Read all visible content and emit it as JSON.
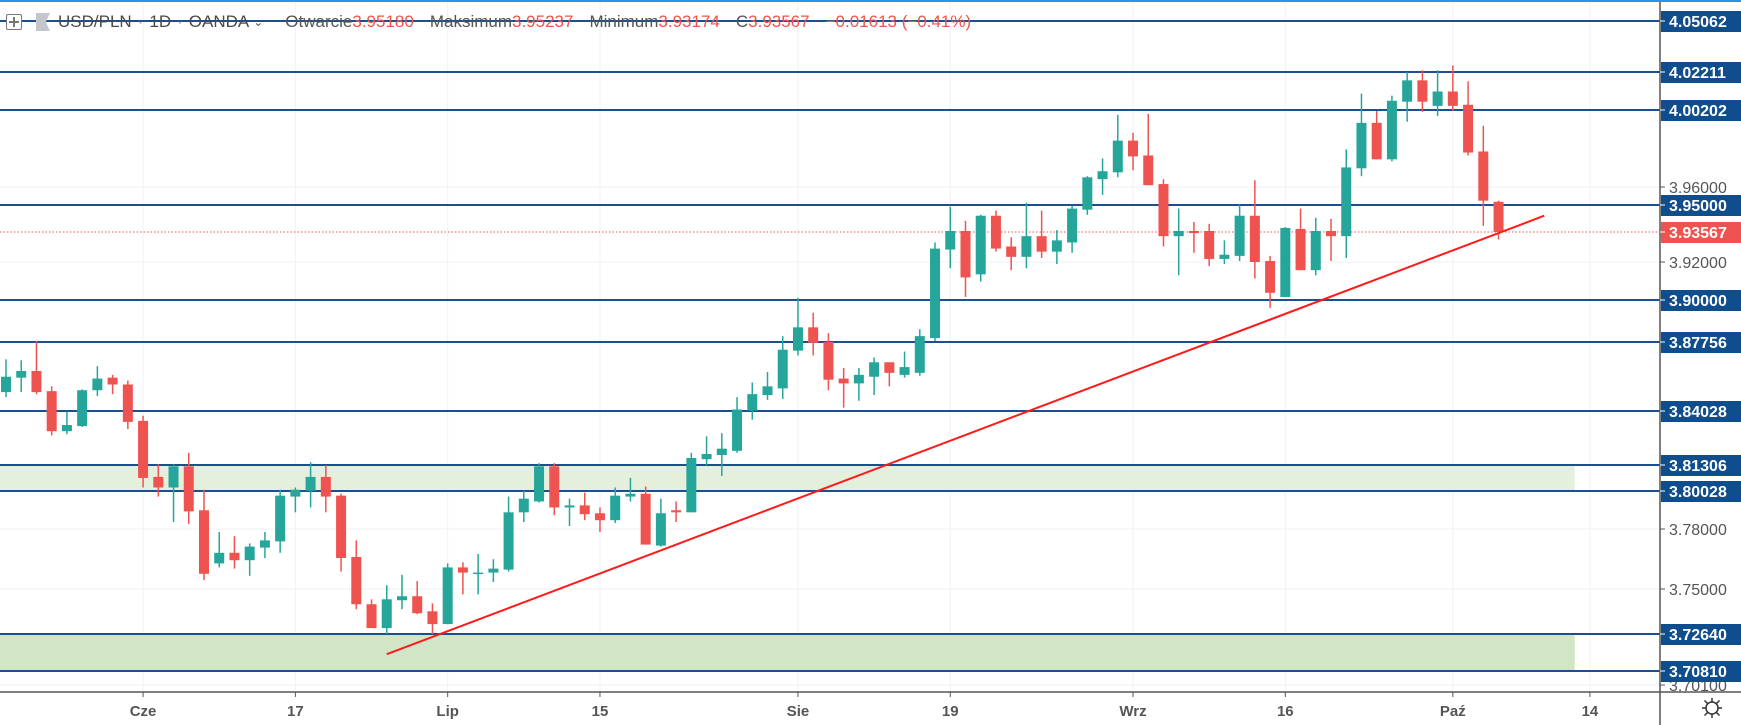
{
  "legend": {
    "symbol": "USD/PLN",
    "interval": "1D",
    "source": "OANDA",
    "separator": "·",
    "ohlc": [
      {
        "label": "Otwarcie",
        "value": "3.95180"
      },
      {
        "label": "Maksimum",
        "value": "3.95237"
      },
      {
        "label": "Minimum",
        "value": "3.93174"
      },
      {
        "label": "C",
        "value": "3.93567"
      }
    ],
    "change": "−0.01613 (−0.41%)"
  },
  "icons": {
    "add": "plus-square-icon",
    "flag": "flag-icon",
    "dropdown": "chevron-down-icon",
    "settings": "gear-icon"
  },
  "colors": {
    "up": "#26a69a",
    "down": "#ef5350",
    "level_line": "#1c4f8f",
    "level_label": "#0f4d8c",
    "current_price": "#ef5350",
    "zone_upper": "#e4efdc",
    "zone_lower": "#d1e6c7",
    "trendline": "#ff1a1a"
  },
  "chart_data": {
    "type": "candlestick",
    "title": "USD/PLN · 1D · OANDA",
    "ohlc_order": [
      "open",
      "high",
      "low",
      "close"
    ],
    "candles": [
      [
        3.8505,
        3.8682,
        3.8478,
        3.8588
      ],
      [
        3.8583,
        3.8677,
        3.8505,
        3.8619
      ],
      [
        3.8619,
        3.8781,
        3.8494,
        3.8505
      ],
      [
        3.851,
        3.8536,
        3.828,
        3.8301
      ],
      [
        3.8301,
        3.84,
        3.8286,
        3.8332
      ],
      [
        3.8327,
        3.852,
        3.8322,
        3.8515
      ],
      [
        3.8515,
        3.8645,
        3.8484,
        3.8578
      ],
      [
        3.8583,
        3.8598,
        3.8494,
        3.8546
      ],
      [
        3.8546,
        3.8567,
        3.8312,
        3.8348
      ],
      [
        3.8353,
        3.8379,
        3.802,
        3.8067
      ],
      [
        3.8072,
        3.8134,
        3.7973,
        3.802
      ],
      [
        3.802,
        3.8134,
        3.7837,
        3.8124
      ],
      [
        3.8124,
        3.8192,
        3.7827,
        3.7894
      ],
      [
        3.79,
        3.8009,
        3.7545,
        3.7576
      ],
      [
        3.7628,
        3.7785,
        3.7608,
        3.7681
      ],
      [
        3.7681,
        3.7764,
        3.7602,
        3.7644
      ],
      [
        3.7644,
        3.7728,
        3.7566,
        3.7712
      ],
      [
        3.7707,
        3.7785,
        3.7655,
        3.7743
      ],
      [
        3.7738,
        3.8009,
        3.7681,
        3.7978
      ],
      [
        3.7973,
        3.802,
        3.7889,
        3.8009
      ],
      [
        3.8004,
        3.8145,
        3.7915,
        3.8072
      ],
      [
        3.8072,
        3.8129,
        3.7889,
        3.7973
      ],
      [
        3.7978,
        3.7988,
        3.7587,
        3.7655
      ],
      [
        3.766,
        3.7743,
        3.7394,
        3.742
      ],
      [
        3.742,
        3.7446,
        3.7295,
        3.7295
      ],
      [
        3.7295,
        3.7519,
        3.7263,
        3.7446
      ],
      [
        3.7441,
        3.7571,
        3.7394,
        3.7462
      ],
      [
        3.7462,
        3.754,
        3.7368,
        3.7373
      ],
      [
        3.7383,
        3.7425,
        3.7263,
        3.7316
      ],
      [
        3.7316,
        3.7628,
        3.7316,
        3.7608
      ],
      [
        3.7608,
        3.7634,
        3.7472,
        3.7582
      ],
      [
        3.7576,
        3.7675,
        3.7472,
        3.7582
      ],
      [
        3.7582,
        3.7649,
        3.7535,
        3.7602
      ],
      [
        3.7597,
        3.7973,
        3.7587,
        3.7889
      ],
      [
        3.7889,
        3.8004,
        3.7837,
        3.7962
      ],
      [
        3.7947,
        3.814,
        3.7941,
        3.8124
      ],
      [
        3.8124,
        3.814,
        3.7874,
        3.7915
      ],
      [
        3.7915,
        3.7962,
        3.7816,
        3.7926
      ],
      [
        3.7926,
        3.7994,
        3.7847,
        3.7879
      ],
      [
        3.7884,
        3.7915,
        3.7785,
        3.7847
      ],
      [
        3.7847,
        3.802,
        3.7832,
        3.7978
      ],
      [
        3.7973,
        3.8067,
        3.7947,
        3.7988
      ],
      [
        3.7988,
        3.8025,
        3.7722,
        3.7722
      ],
      [
        3.7717,
        3.7962,
        3.7712,
        3.7884
      ],
      [
        3.79,
        3.7947,
        3.7837,
        3.7889
      ],
      [
        3.7889,
        3.8192,
        3.7889,
        3.8166
      ],
      [
        3.816,
        3.8275,
        3.8129,
        3.8186
      ],
      [
        3.8181,
        3.8291,
        3.8077,
        3.8213
      ],
      [
        3.8202,
        3.8478,
        3.8192,
        3.8411
      ],
      [
        3.8405,
        3.8557,
        3.8359,
        3.8494
      ],
      [
        3.8489,
        3.8614,
        3.8463,
        3.8536
      ],
      [
        3.8525,
        3.8807,
        3.8468,
        3.8734
      ],
      [
        3.8729,
        3.9011,
        3.8703,
        3.8854
      ],
      [
        3.8854,
        3.8932,
        3.8703,
        3.8771
      ],
      [
        3.8776,
        3.8823,
        3.8515,
        3.8572
      ],
      [
        3.8578,
        3.8635,
        3.8421,
        3.8552
      ],
      [
        3.8552,
        3.8635,
        3.8458,
        3.8598
      ],
      [
        3.8588,
        3.8692,
        3.8489,
        3.8666
      ],
      [
        3.8666,
        3.8666,
        3.8536,
        3.8609
      ],
      [
        3.8598,
        3.8724,
        3.8583,
        3.864
      ],
      [
        3.8609,
        3.8844,
        3.8593,
        3.8807
      ],
      [
        3.8797,
        3.9302,
        3.8781,
        3.927
      ],
      [
        3.9265,
        3.9491,
        3.9167,
        3.9362
      ],
      [
        3.9362,
        3.9416,
        3.9016,
        3.9119
      ],
      [
        3.9135,
        3.9448,
        3.9097,
        3.9443
      ],
      [
        3.9443,
        3.947,
        3.9254,
        3.927
      ],
      [
        3.9281,
        3.9329,
        3.9157,
        3.9227
      ],
      [
        3.9227,
        3.9513,
        3.9167,
        3.9335
      ],
      [
        3.9335,
        3.947,
        3.9221,
        3.9254
      ],
      [
        3.9254,
        3.9367,
        3.9189,
        3.9313
      ],
      [
        3.9302,
        3.9497,
        3.9248,
        3.9481
      ],
      [
        3.9475,
        3.9659,
        3.9448,
        3.9653
      ],
      [
        3.9643,
        3.9756,
        3.9556,
        3.9686
      ],
      [
        3.968,
        3.9994,
        3.9653,
        3.9853
      ],
      [
        3.9853,
        3.9896,
        3.9691,
        3.9767
      ],
      [
        3.9772,
        3.9999,
        3.961,
        3.961
      ],
      [
        3.9616,
        3.9643,
        3.9281,
        3.9335
      ],
      [
        3.9335,
        3.9481,
        3.913,
        3.9362
      ],
      [
        3.9362,
        3.941,
        3.9248,
        3.9351
      ],
      [
        3.9362,
        3.94,
        3.9178,
        3.9216
      ],
      [
        3.9216,
        3.9313,
        3.9189,
        3.9238
      ],
      [
        3.9232,
        3.9502,
        3.9205,
        3.9443
      ],
      [
        3.9443,
        3.9637,
        3.9113,
        3.92
      ],
      [
        3.9205,
        3.9232,
        3.8958,
        3.9038
      ],
      [
        3.9016,
        3.9383,
        3.9016,
        3.9378
      ],
      [
        3.9373,
        3.9481,
        3.9157,
        3.9157
      ],
      [
        3.9157,
        3.9432,
        3.913,
        3.9362
      ],
      [
        3.9362,
        3.9427,
        3.9205,
        3.9335
      ],
      [
        3.9335,
        3.9805,
        3.9221,
        3.9707
      ],
      [
        3.9702,
        4.0107,
        3.9659,
        3.995
      ],
      [
        3.995,
        4.0015,
        3.9751,
        3.9751
      ],
      [
        3.9751,
        4.0096,
        3.974,
        4.0069
      ],
      [
        4.0064,
        4.022,
        3.9956,
        4.0177
      ],
      [
        4.0177,
        4.0231,
        4.001,
        4.0064
      ],
      [
        4.0042,
        4.0231,
        3.9988,
        4.0118
      ],
      [
        4.0118,
        4.0258,
        4.0015,
        4.0042
      ],
      [
        4.0048,
        4.0172,
        3.9772,
        3.9788
      ],
      [
        3.9794,
        3.9934,
        3.9389,
        3.9524
      ],
      [
        3.9518,
        3.95237,
        3.93174,
        3.93567
      ]
    ],
    "levels": [
      "4.05062",
      "4.02211",
      "4.00202",
      "3.95000",
      "3.90000",
      "3.87756",
      "3.84028",
      "3.81306",
      "3.80028",
      "3.72640",
      "3.70810"
    ],
    "price_ticks": [
      "3.96000",
      "3.92000",
      "3.78000",
      "3.75000",
      "3.70100"
    ],
    "current_price": "3.93567",
    "zones": [
      {
        "from": 3.80028,
        "to": 3.81306,
        "end_bar": 103
      },
      {
        "from": 3.7081,
        "to": 3.7264,
        "end_bar": 103
      }
    ],
    "trendline": {
      "start_bar": 25,
      "start_price": 3.7164,
      "end_bar": 101,
      "end_price": 3.9443
    },
    "time_labels": [
      {
        "label": "Cze",
        "bar": 9
      },
      {
        "label": "17",
        "bar": 19
      },
      {
        "label": "Lip",
        "bar": 29
      },
      {
        "label": "15",
        "bar": 39
      },
      {
        "label": "Sie",
        "bar": 52
      },
      {
        "label": "19",
        "bar": 62
      },
      {
        "label": "Wrz",
        "bar": 74
      },
      {
        "label": "16",
        "bar": 84
      },
      {
        "label": "Paź",
        "bar": 95
      },
      {
        "label": "14",
        "bar": 104
      }
    ],
    "grid": true
  }
}
